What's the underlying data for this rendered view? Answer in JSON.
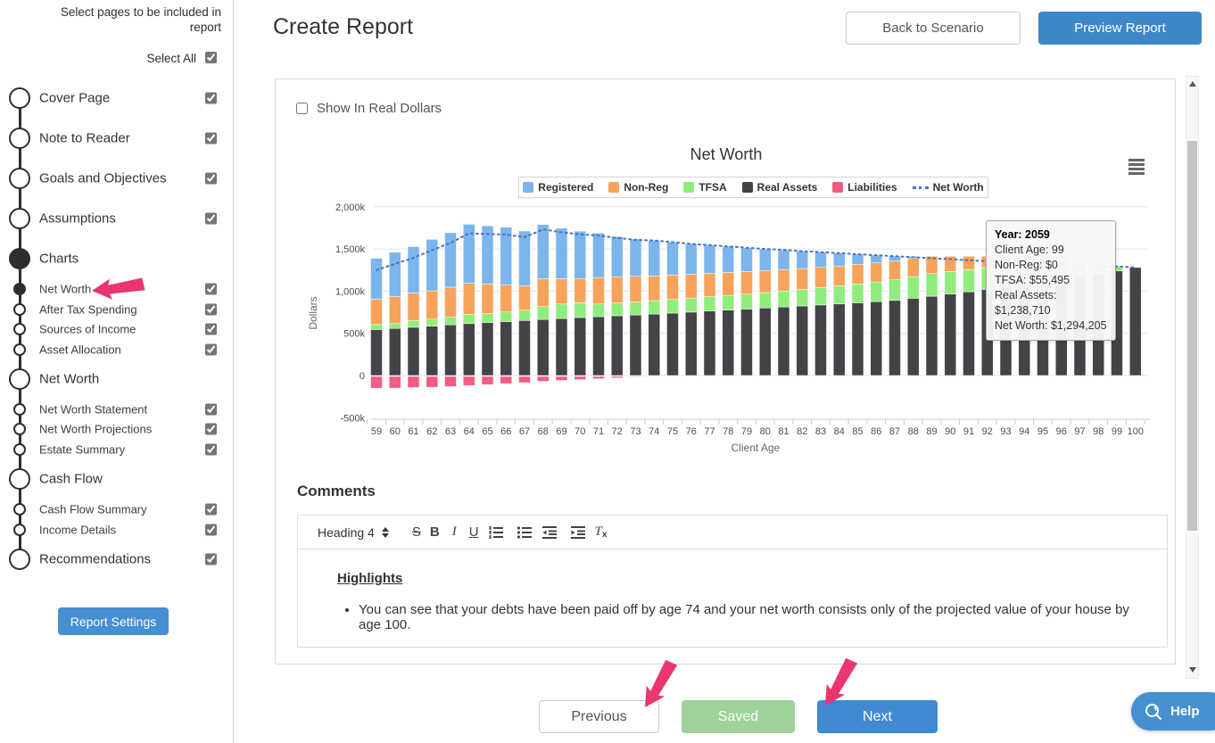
{
  "sidebar": {
    "title": "Select pages to be included in report",
    "select_all": {
      "label": "Select All",
      "checked": true
    },
    "items": [
      {
        "label": "Cover Page",
        "type": "main",
        "checked": true
      },
      {
        "label": "Note to Reader",
        "type": "main",
        "checked": true
      },
      {
        "label": "Goals and Objectives",
        "type": "main",
        "checked": true
      },
      {
        "label": "Assumptions",
        "type": "main",
        "checked": true
      },
      {
        "label": "Charts",
        "type": "section",
        "active": true
      },
      {
        "label": "Net Worth",
        "type": "sub",
        "checked": true,
        "active": true
      },
      {
        "label": "After Tax Spending",
        "type": "sub",
        "checked": true
      },
      {
        "label": "Sources of Income",
        "type": "sub",
        "checked": true
      },
      {
        "label": "Asset Allocation",
        "type": "sub",
        "checked": true
      },
      {
        "label": "Net Worth",
        "type": "section"
      },
      {
        "label": "Net Worth Statement",
        "type": "sub",
        "checked": true
      },
      {
        "label": "Net Worth Projections",
        "type": "sub",
        "checked": true
      },
      {
        "label": "Estate Summary",
        "type": "sub",
        "checked": true
      },
      {
        "label": "Cash Flow",
        "type": "section"
      },
      {
        "label": "Cash Flow Summary",
        "type": "sub",
        "checked": true
      },
      {
        "label": "Income Details",
        "type": "sub",
        "checked": true
      },
      {
        "label": "Recommendations",
        "type": "main",
        "checked": true
      }
    ],
    "report_settings_label": "Report Settings"
  },
  "header": {
    "title": "Create Report",
    "back_button": "Back to Scenario",
    "preview_button": "Preview Report"
  },
  "chart_panel": {
    "show_real_dollars_label": "Show In Real Dollars",
    "show_real_dollars_checked": false,
    "menu_icon": "hamburger-icon"
  },
  "chart_data": {
    "type": "bar",
    "stacked": true,
    "title": "Net Worth",
    "xlabel": "Client Age",
    "ylabel": "Dollars",
    "ylim": [
      -500000,
      2000000
    ],
    "yticks": [
      {
        "value": 2000,
        "label": "2,000k"
      },
      {
        "value": 1500,
        "label": "1,500k"
      },
      {
        "value": 1000,
        "label": "1,000k"
      },
      {
        "value": 500,
        "label": "500k"
      },
      {
        "value": 0,
        "label": "0"
      },
      {
        "value": -500,
        "label": "-500k"
      }
    ],
    "categories": [
      59,
      60,
      61,
      62,
      63,
      64,
      65,
      66,
      67,
      68,
      69,
      70,
      71,
      72,
      73,
      74,
      75,
      76,
      77,
      78,
      79,
      80,
      81,
      82,
      83,
      84,
      85,
      86,
      87,
      88,
      89,
      90,
      91,
      92,
      93,
      94,
      95,
      96,
      97,
      98,
      99,
      100
    ],
    "values_unit": "thousands of dollars",
    "series": [
      {
        "name": "Registered",
        "type": "bar",
        "color": "#7cb5ec",
        "values": [
          485,
          525,
          550,
          610,
          645,
          700,
          690,
          685,
          650,
          640,
          598,
          560,
          528,
          478,
          440,
          420,
          390,
          360,
          335,
          309,
          283,
          256,
          232,
          207,
          180,
          152,
          122,
          91,
          59,
          26,
          0,
          0,
          0,
          0,
          0,
          0,
          0,
          0,
          0,
          0,
          0,
          0
        ]
      },
      {
        "name": "Non-Reg",
        "type": "bar",
        "color": "#f7a35c",
        "values": [
          300,
          320,
          325,
          335,
          355,
          370,
          350,
          318,
          288,
          332,
          300,
          288,
          312,
          310,
          302,
          292,
          287,
          281,
          276,
          271,
          266,
          261,
          254,
          247,
          241,
          236,
          231,
          226,
          221,
          216,
          204,
          180,
          158,
          136,
          115,
          94,
          73,
          53,
          30,
          10,
          0,
          0
        ]
      },
      {
        "name": "TFSA",
        "type": "bar",
        "color": "#90ed7d",
        "values": [
          60,
          58,
          80,
          82,
          92,
          108,
          106,
          114,
          122,
          152,
          172,
          174,
          150,
          152,
          156,
          160,
          163,
          167,
          170,
          174,
          178,
          183,
          190,
          197,
          205,
          214,
          223,
          233,
          244,
          256,
          268,
          266,
          262,
          258,
          252,
          246,
          240,
          233,
          160,
          105,
          55,
          0
        ]
      },
      {
        "name": "Real Assets",
        "type": "bar",
        "color": "#434348",
        "values": [
          545,
          558,
          572,
          586,
          600,
          615,
          628,
          640,
          652,
          665,
          676,
          688,
          698,
          708,
          718,
          728,
          740,
          752,
          764,
          776,
          788,
          800,
          812,
          824,
          836,
          848,
          862,
          876,
          890,
          915,
          940,
          966,
          993,
          1021,
          1049,
          1078,
          1108,
          1139,
          1171,
          1204,
          1239,
          1280
        ]
      },
      {
        "name": "Liabilities",
        "type": "bar",
        "color": "#f15c80",
        "values": [
          -140,
          -138,
          -132,
          -128,
          -120,
          -108,
          -96,
          -86,
          -74,
          -58,
          -48,
          -38,
          -28,
          -18,
          -8,
          0,
          0,
          0,
          0,
          0,
          0,
          0,
          0,
          0,
          0,
          0,
          0,
          0,
          0,
          0,
          0,
          0,
          0,
          0,
          0,
          0,
          0,
          0,
          0,
          0,
          0,
          0
        ]
      },
      {
        "name": "Net Worth",
        "type": "line",
        "dash": "dot",
        "color": "#4573c4",
        "values": [
          1250,
          1323,
          1395,
          1485,
          1572,
          1685,
          1678,
          1671,
          1638,
          1731,
          1698,
          1672,
          1660,
          1630,
          1608,
          1600,
          1580,
          1560,
          1545,
          1530,
          1515,
          1500,
          1488,
          1475,
          1462,
          1450,
          1438,
          1426,
          1414,
          1402,
          1390,
          1378,
          1366,
          1354,
          1342,
          1330,
          1318,
          1306,
          1298,
          1290,
          1294,
          1280
        ]
      }
    ],
    "legend_position": "top",
    "grid": "horizontal",
    "stack_order_bottom_to_top": [
      "Real Assets",
      "TFSA",
      "Non-Reg",
      "Registered"
    ]
  },
  "tooltip": {
    "title": "Year: 2059",
    "lines": [
      "Client Age: 99",
      "Non-Reg: $0",
      "TFSA: $55,495",
      "Real Assets: $1,238,710",
      "Net Worth: $1,294,205"
    ]
  },
  "comments": {
    "label": "Comments",
    "toolbar": {
      "heading_selector": "Heading 4",
      "buttons": [
        "strikethrough",
        "bold",
        "italic",
        "underline",
        "ordered-list",
        "bullet-list",
        "outdent",
        "indent",
        "clear-formatting"
      ]
    },
    "heading": "Highlights",
    "bullets": [
      "You can see that your debts have been paid off by age 74 and your net worth consists only of the projected value of your house by age 100."
    ]
  },
  "footer": {
    "previous_label": "Previous",
    "saved_label": "Saved",
    "next_label": "Next"
  },
  "help": {
    "label": "Help"
  },
  "colors": {
    "accent_blue": "#4189d0",
    "saved_green": "#9ed29a",
    "annotation_pink": "#ea356e",
    "timeline_dark": "#2e2e2e"
  }
}
